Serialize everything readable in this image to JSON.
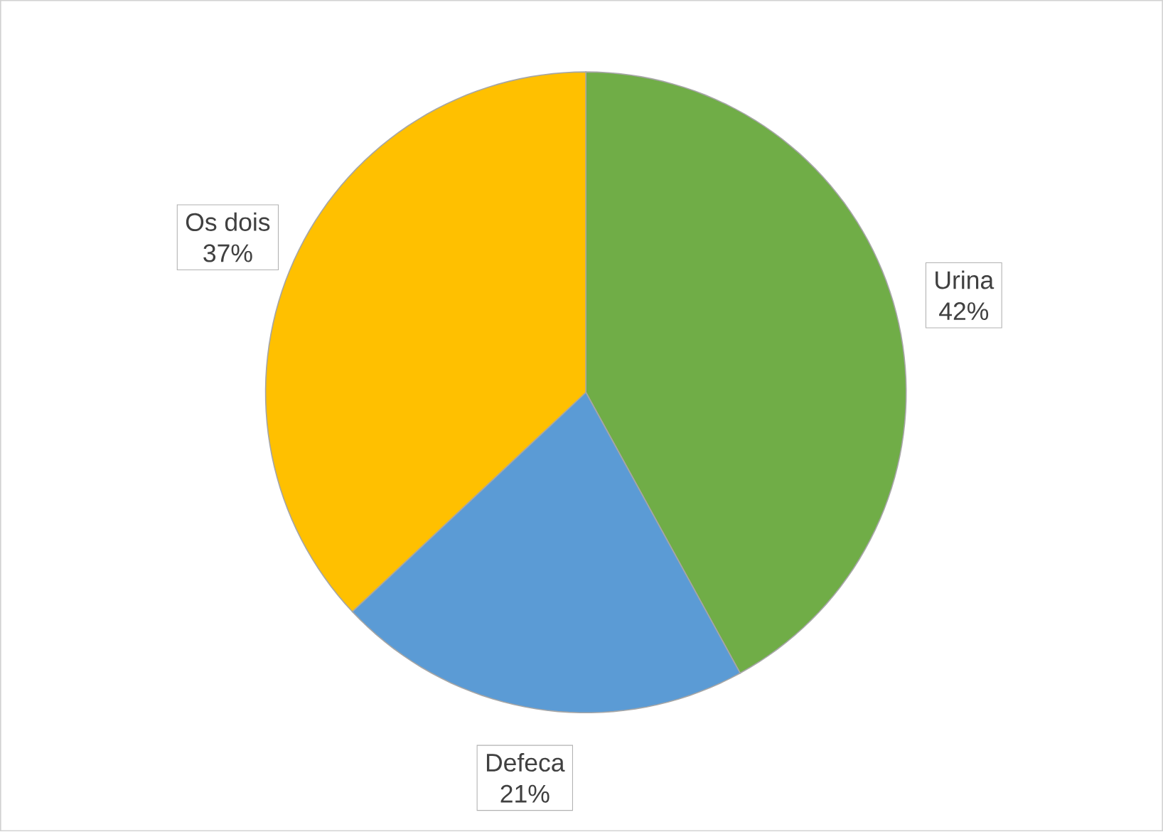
{
  "chart_data": {
    "type": "pie",
    "categories": [
      "Urina",
      "Defeca",
      "Os dois"
    ],
    "values": [
      42,
      21,
      37
    ],
    "value_labels": [
      "42%",
      "21%",
      "37%"
    ],
    "colors": [
      "#70ad47",
      "#5b9bd5",
      "#ffc000"
    ]
  }
}
